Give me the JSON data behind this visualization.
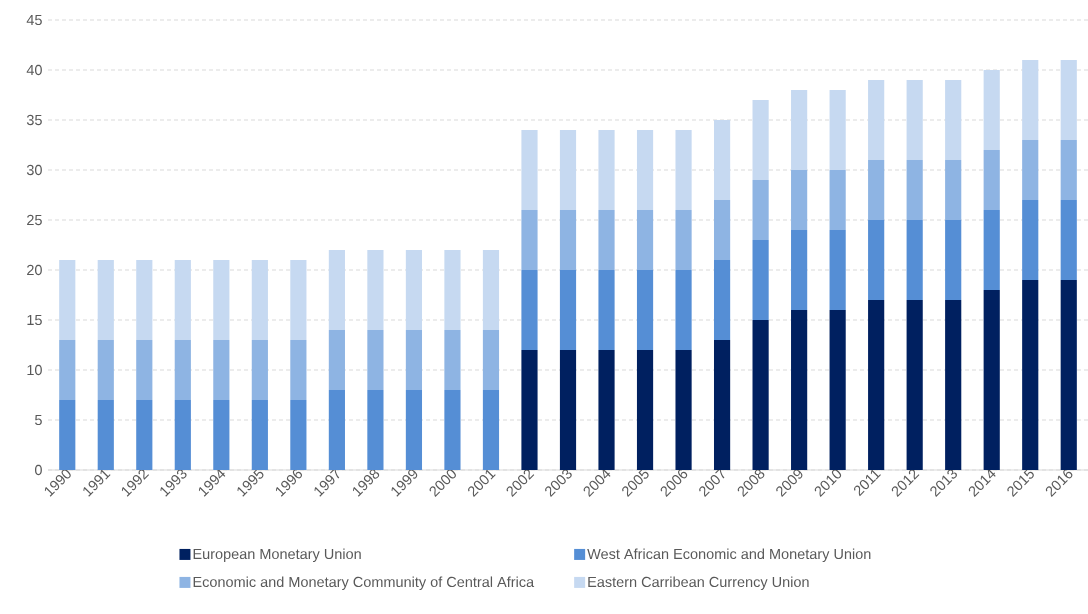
{
  "chart_data": {
    "type": "bar",
    "stacked": true,
    "categories": [
      "1990",
      "1991",
      "1992",
      "1993",
      "1994",
      "1995",
      "1996",
      "1997",
      "1998",
      "1999",
      "2000",
      "2001",
      "2002",
      "2003",
      "2004",
      "2005",
      "2006",
      "2007",
      "2008",
      "2009",
      "2010",
      "2011",
      "2012",
      "2013",
      "2014",
      "2015",
      "2016"
    ],
    "series": [
      {
        "name": "European Monetary Union",
        "color": "#002060",
        "values": [
          0,
          0,
          0,
          0,
          0,
          0,
          0,
          0,
          0,
          0,
          0,
          0,
          12,
          12,
          12,
          12,
          12,
          13,
          15,
          16,
          16,
          17,
          17,
          17,
          18,
          19,
          19
        ]
      },
      {
        "name": "West African Economic and Monetary Union",
        "color": "#558ed5",
        "values": [
          7,
          7,
          7,
          7,
          7,
          7,
          7,
          8,
          8,
          8,
          8,
          8,
          8,
          8,
          8,
          8,
          8,
          8,
          8,
          8,
          8,
          8,
          8,
          8,
          8,
          8,
          8
        ]
      },
      {
        "name": "Economic and Monetary Community of Central Africa",
        "color": "#8eb4e3",
        "values": [
          6,
          6,
          6,
          6,
          6,
          6,
          6,
          6,
          6,
          6,
          6,
          6,
          6,
          6,
          6,
          6,
          6,
          6,
          6,
          6,
          6,
          6,
          6,
          6,
          6,
          6,
          6
        ]
      },
      {
        "name": "Eastern Carribean Currency Union",
        "color": "#c6d9f1",
        "values": [
          8,
          8,
          8,
          8,
          8,
          8,
          8,
          8,
          8,
          8,
          8,
          8,
          8,
          8,
          8,
          8,
          8,
          8,
          8,
          8,
          8,
          8,
          8,
          8,
          8,
          8,
          8
        ]
      }
    ],
    "ylim": [
      0,
      45
    ],
    "yticks": [
      0,
      5,
      10,
      15,
      20,
      25,
      30,
      35,
      40,
      45
    ],
    "grid": "y",
    "legend": "bottom"
  }
}
